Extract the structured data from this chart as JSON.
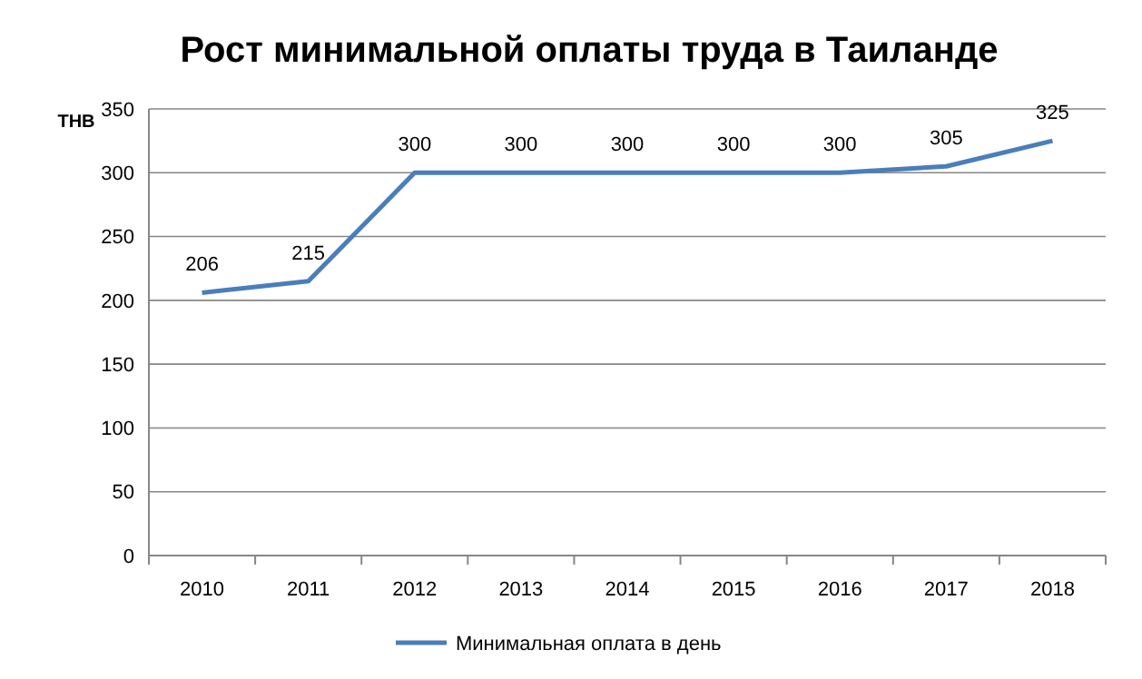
{
  "chart_data": {
    "type": "line",
    "title": "Рост минимальной оплаты труда в Таиланде",
    "ylabel": "THB",
    "categories": [
      "2010",
      "2011",
      "2012",
      "2013",
      "2014",
      "2015",
      "2016",
      "2017",
      "2018"
    ],
    "series": [
      {
        "name": "Минимальная оплата в день",
        "color": "#4a7ebb",
        "values": [
          206,
          215,
          300,
          300,
          300,
          300,
          300,
          305,
          325
        ]
      }
    ],
    "ylim": [
      0,
      350
    ],
    "yticks": [
      0,
      50,
      100,
      150,
      200,
      250,
      300,
      350
    ],
    "grid": "y",
    "legend": "bottom",
    "data_labels": true,
    "marker": "none",
    "line_style": "solid"
  }
}
